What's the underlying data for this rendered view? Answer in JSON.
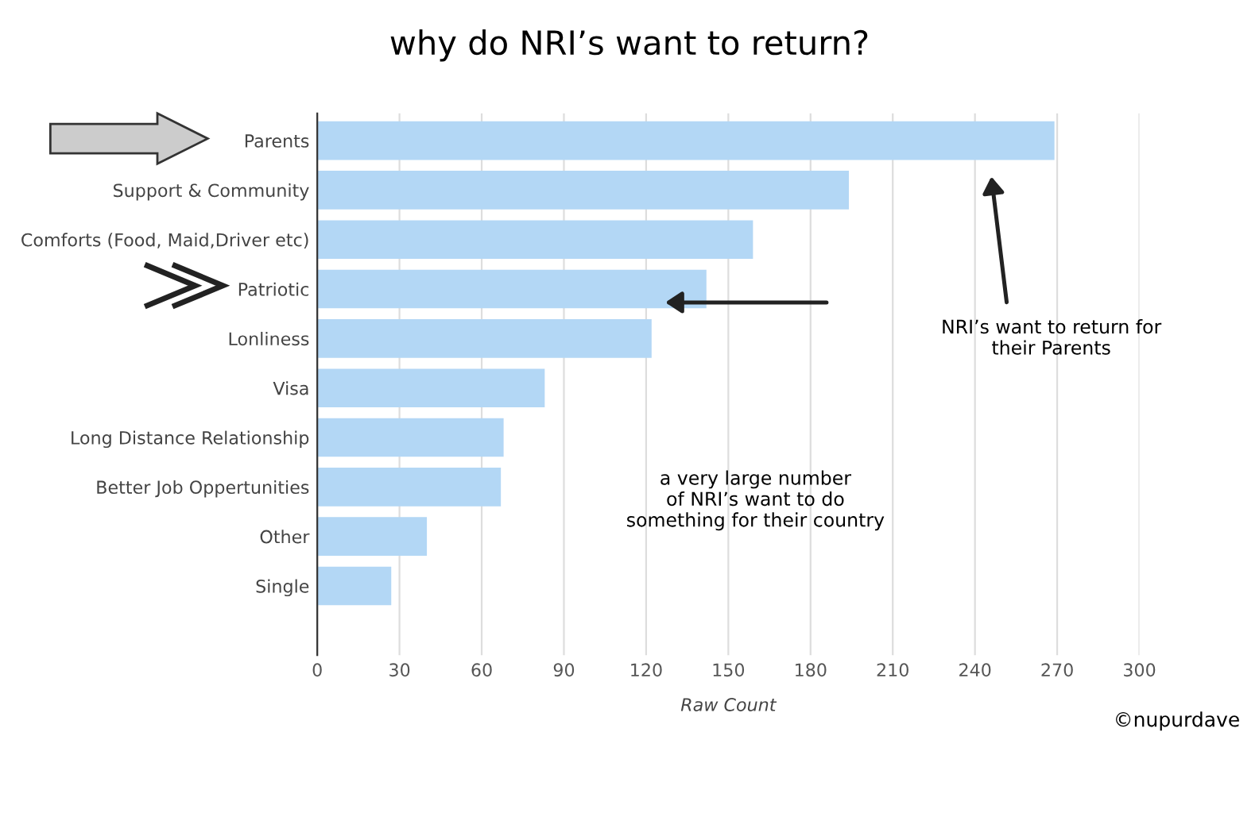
{
  "chart_data": {
    "type": "bar",
    "orientation": "horizontal",
    "title": "why do NRI’s want to return?",
    "xlabel": "Raw Count",
    "categories": [
      "Parents",
      "Support & Community",
      "Comforts (Food, Maid,Driver etc)",
      "Patriotic",
      "Lonliness",
      "Visa",
      "Long Distance Relationship",
      "Better Job Oppertunities",
      "Other",
      "Single"
    ],
    "values": [
      269,
      194,
      159,
      142,
      122,
      83,
      68,
      67,
      40,
      27
    ],
    "color": "#b3d7f5",
    "xlim": [
      0,
      300
    ],
    "xticks": [
      0,
      30,
      60,
      90,
      120,
      150,
      180,
      210,
      240,
      270,
      300
    ],
    "grid": "x",
    "legend": false,
    "annotations": [
      "NRI’s want to return for\ntheir Parents",
      "a very large number\nof NRI’s want to do\nsomething for their country",
      "©nupurdave"
    ]
  }
}
